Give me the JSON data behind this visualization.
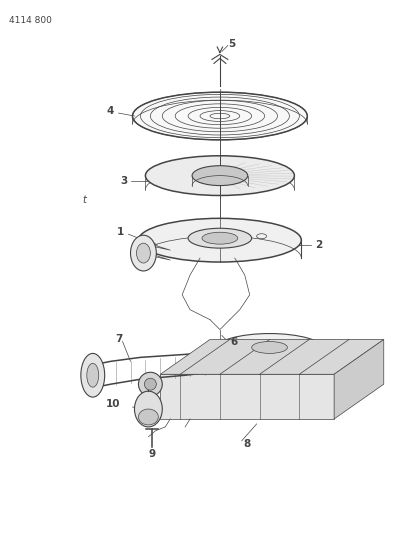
{
  "bg_color": "#ffffff",
  "line_color": "#444444",
  "top_label": "4114 800",
  "fig_w": 4.08,
  "fig_h": 5.33,
  "dpi": 100
}
